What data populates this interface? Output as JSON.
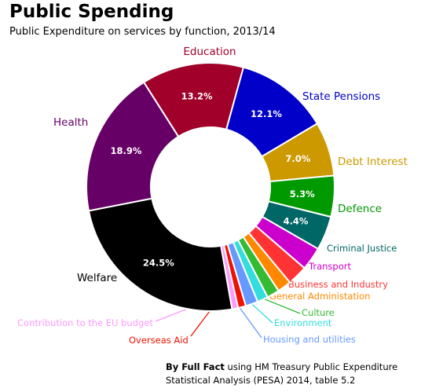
{
  "header": {
    "title": "Public Spending",
    "subtitle": "Public Expenditure on services by function, 2013/14"
  },
  "footer": {
    "credit_bold": "By Full Fact",
    "credit_rest": "using HM Treasury Public Expenditure",
    "credit_line2": "Statistical Analysis (PESA) 2014, table 5.2"
  },
  "chart_data": {
    "type": "pie",
    "donut": true,
    "title": "Public Spending",
    "subtitle": "Public Expenditure on services by function, 2013/14",
    "slices": [
      {
        "name": "Education",
        "value": 13.2,
        "pct_label": "13.2%",
        "color": "#a0002a"
      },
      {
        "name": "State Pensions",
        "value": 12.1,
        "pct_label": "12.1%",
        "color": "#0000c8"
      },
      {
        "name": "Debt Interest",
        "value": 7.0,
        "pct_label": "7.0%",
        "color": "#cc9900"
      },
      {
        "name": "Defence",
        "value": 5.3,
        "pct_label": "5.3%",
        "color": "#009900"
      },
      {
        "name": "Criminal Justice",
        "value": 4.4,
        "pct_label": "4.4%",
        "color": "#006666"
      },
      {
        "name": "Transport",
        "value": 3.0,
        "pct_label": "",
        "color": "#cc00cc"
      },
      {
        "name": "Business and Industry",
        "value": 2.6,
        "pct_label": "",
        "color": "#ff3333"
      },
      {
        "name": "General Administation",
        "value": 1.8,
        "pct_label": "",
        "color": "#ff8800"
      },
      {
        "name": "Culture",
        "value": 1.6,
        "pct_label": "",
        "color": "#33bb33"
      },
      {
        "name": "Environment",
        "value": 1.4,
        "pct_label": "",
        "color": "#33dddd"
      },
      {
        "name": "Housing and utilities",
        "value": 1.6,
        "pct_label": "",
        "color": "#6699ff"
      },
      {
        "name": "Overseas Aid",
        "value": 1.0,
        "pct_label": "",
        "color": "#ee1100"
      },
      {
        "name": "Contribution to the EU budget",
        "value": 0.8,
        "pct_label": "",
        "color": "#ff99ff"
      },
      {
        "name": "Welfare",
        "value": 24.5,
        "pct_label": "24.5%",
        "color": "#000000"
      },
      {
        "name": "Health",
        "value": 18.9,
        "pct_label": "18.9%",
        "color": "#660066"
      }
    ]
  }
}
